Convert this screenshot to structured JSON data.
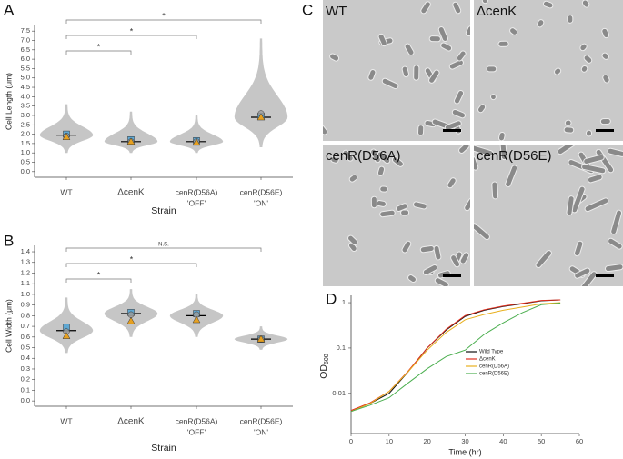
{
  "panel_labels": [
    "A",
    "B",
    "C",
    "D"
  ],
  "micrographs": {
    "labels": [
      "WT",
      "ΔcenK",
      "cenR(D56A)",
      "cenR(D56E)"
    ]
  },
  "chart_data": [
    {
      "type": "violin",
      "y_label": "Cell Length (μm)",
      "x_label": "Strain",
      "categories": [
        "WT",
        "ΔcenK",
        "cenR(D56A)",
        "cenR(D56E)"
      ],
      "category_sublabels": [
        null,
        null,
        "'OFF'",
        "'ON'"
      ],
      "ylim": [
        -0.3,
        7.8
      ],
      "yticks": [
        {
          "value": 0,
          "label": "0.0"
        },
        0.5,
        {
          "value": 1,
          "label": "1.0"
        },
        1.5,
        {
          "value": 2,
          "label": "2.0"
        },
        2.5,
        {
          "value": 3,
          "label": "3.0"
        },
        3.5,
        {
          "value": 4,
          "label": "4.0"
        },
        4.5,
        {
          "value": 5,
          "label": "5.0"
        },
        5.5,
        {
          "value": 6,
          "label": "6.0"
        },
        6.5,
        {
          "value": 7,
          "label": "7.0"
        },
        7.5
      ],
      "min": [
        1.0,
        1.0,
        1.0,
        1.3
      ],
      "max": [
        3.6,
        3.2,
        3.0,
        7.1
      ],
      "median": [
        1.95,
        1.6,
        1.6,
        2.9
      ],
      "violin_color": "#c6c6c6",
      "median_color": "#000000",
      "markers": [
        {
          "shape": "square",
          "color": "#5fa8d3",
          "values": [
            2.0,
            1.7,
            1.65,
            2.95
          ]
        },
        {
          "shape": "circle",
          "color": "#9a9a9a",
          "values": [
            1.9,
            1.6,
            1.6,
            3.1
          ]
        },
        {
          "shape": "triangle",
          "color": "#e6a020",
          "values": [
            1.85,
            1.6,
            1.55,
            2.9
          ]
        }
      ],
      "comparisons": [
        {
          "from": 0,
          "to": 3,
          "label": "*"
        },
        {
          "from": 0,
          "to": 2,
          "label": "*"
        },
        {
          "from": 0,
          "to": 1,
          "label": "*"
        }
      ]
    },
    {
      "type": "violin",
      "y_label": "Cell Width (μm)",
      "x_label": "Strain",
      "categories": [
        "WT",
        "ΔcenK",
        "cenR(D56A)",
        "cenR(D56E)"
      ],
      "category_sublabels": [
        null,
        null,
        "'OFF'",
        "'ON'"
      ],
      "ylim": [
        -0.05,
        1.46
      ],
      "yticks": [
        {
          "value": 0,
          "label": "0.0"
        },
        0.1,
        0.2,
        0.3,
        0.4,
        0.5,
        0.6,
        0.7,
        0.8,
        0.9,
        {
          "value": 1,
          "label": "1.0"
        },
        1.1,
        1.2,
        1.3,
        1.4
      ],
      "min": [
        0.45,
        0.6,
        0.6,
        0.48
      ],
      "max": [
        0.97,
        1.05,
        1.0,
        0.7
      ],
      "median": [
        0.66,
        0.82,
        0.8,
        0.58
      ],
      "violin_color": "#c6c6c6",
      "median_color": "#000000",
      "markers": [
        {
          "shape": "square",
          "color": "#5fa8d3",
          "values": [
            0.69,
            0.83,
            0.82,
            0.58
          ]
        },
        {
          "shape": "circle",
          "color": "#9a9a9a",
          "values": [
            0.65,
            0.81,
            0.81,
            0.58
          ]
        },
        {
          "shape": "triangle",
          "color": "#e6a020",
          "values": [
            0.61,
            0.75,
            0.76,
            0.58
          ]
        }
      ],
      "comparisons": [
        {
          "from": 0,
          "to": 3,
          "label": "N.S."
        },
        {
          "from": 0,
          "to": 2,
          "label": "*"
        },
        {
          "from": 0,
          "to": 1,
          "label": "*"
        }
      ]
    },
    {
      "type": "line",
      "x_label": "Time (hr)",
      "y_label": "OD",
      "y_label_subscript": "600",
      "log_y": true,
      "legend": "right",
      "xlim": [
        0,
        60
      ],
      "xticks": [
        0,
        10,
        20,
        30,
        40,
        50,
        60
      ],
      "ylim": [
        0.0013,
        1.45
      ],
      "yticks": [
        0.01,
        0.1,
        1
      ],
      "x": [
        0,
        5,
        10,
        15,
        20,
        25,
        30,
        35,
        40,
        45,
        50,
        55
      ],
      "series": [
        {
          "name": "Wild Type",
          "color": "#111111",
          "values": [
            0.004,
            0.006,
            0.01,
            0.03,
            0.1,
            0.25,
            0.5,
            0.68,
            0.82,
            0.95,
            1.1,
            1.15
          ]
        },
        {
          "name": "ΔcenK",
          "color": "#e03020",
          "values": [
            0.0042,
            0.0062,
            0.011,
            0.031,
            0.1,
            0.26,
            0.52,
            0.7,
            0.84,
            0.97,
            1.12,
            1.15
          ]
        },
        {
          "name": "cenR(D56A)",
          "color": "#e8b020",
          "values": [
            0.004,
            0.006,
            0.011,
            0.03,
            0.09,
            0.22,
            0.42,
            0.55,
            0.68,
            0.8,
            0.95,
            1.0
          ]
        },
        {
          "name": "cenR(D56E)",
          "color": "#4caf50",
          "values": [
            0.004,
            0.0055,
            0.008,
            0.017,
            0.035,
            0.065,
            0.09,
            0.2,
            0.36,
            0.6,
            0.9,
            0.98
          ]
        }
      ]
    }
  ]
}
